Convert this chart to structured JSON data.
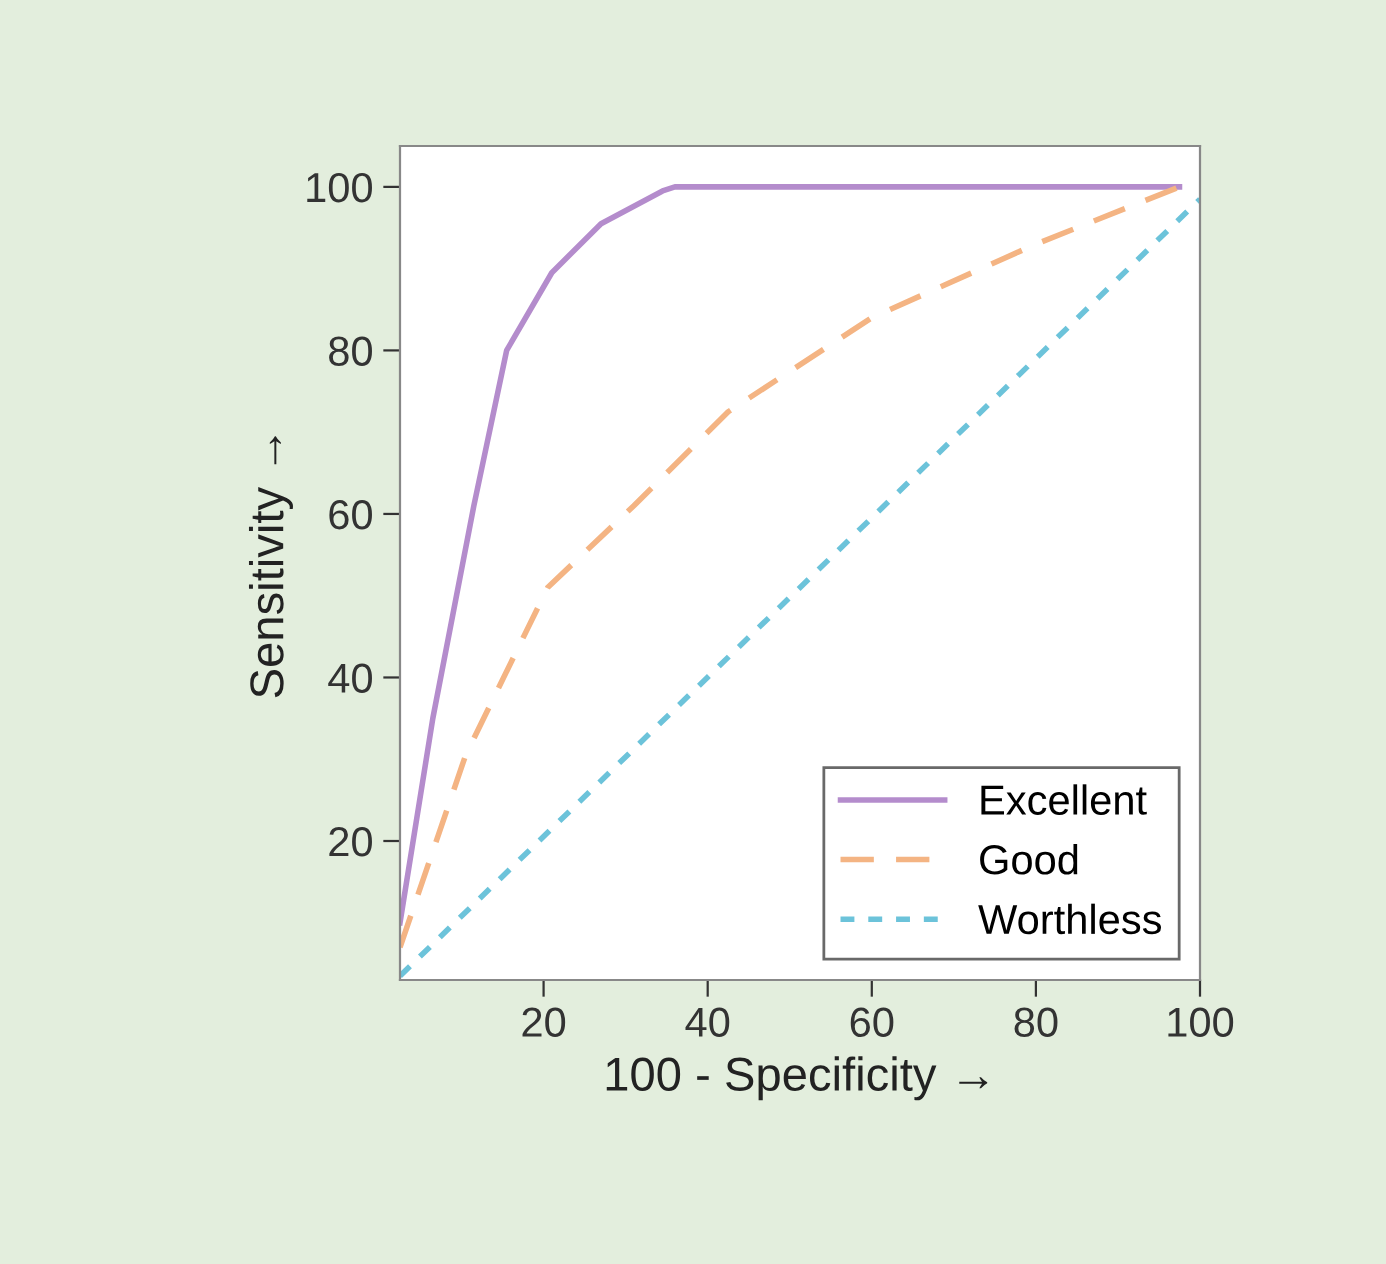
{
  "chart_data": {
    "type": "line",
    "xlabel": "100 - Specificity →",
    "ylabel": "Sensitivity →",
    "xlim": [
      2.5,
      100
    ],
    "ylim": [
      3,
      105
    ],
    "xticks": [
      20,
      40,
      60,
      80,
      100
    ],
    "yticks": [
      20,
      40,
      60,
      80,
      100
    ],
    "grid": false,
    "legend": "bottom right",
    "series": [
      {
        "name": "Excellent",
        "color": "#b48ccc",
        "line_style": "solid",
        "x": [
          2.5,
          6.5,
          11.5,
          15.5,
          21,
          27,
          34.5,
          36,
          97.5
        ],
        "values": [
          10,
          35,
          61,
          80,
          89.5,
          95.5,
          99.5,
          100,
          100
        ]
      },
      {
        "name": "Good",
        "color": "#f4b483",
        "line_style": "dashed",
        "x": [
          2.5,
          10.5,
          20.5,
          31,
          42.5,
          60,
          80,
          97.5
        ],
        "values": [
          7,
          30.5,
          51,
          61,
          72.5,
          84,
          93,
          100
        ]
      },
      {
        "name": "Worthless",
        "color": "#6cc3da",
        "line_style": "dotted",
        "x": [
          2.5,
          100
        ],
        "values": [
          3.5,
          98.5
        ]
      }
    ]
  }
}
